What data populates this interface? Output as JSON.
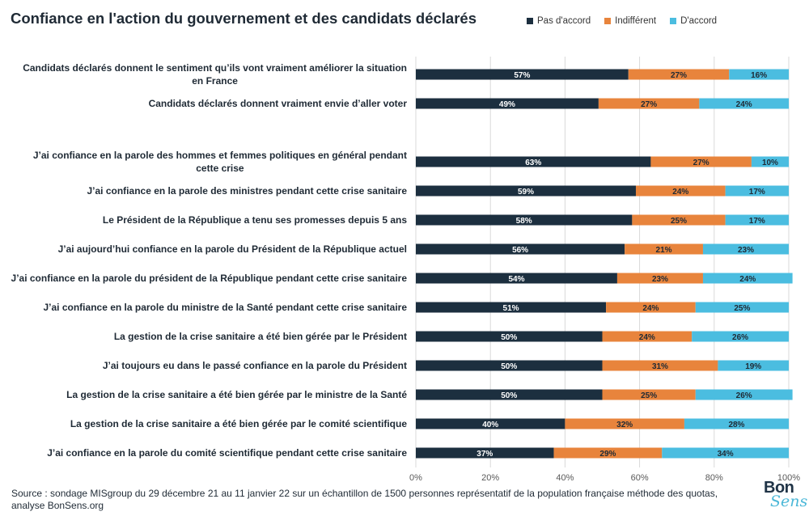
{
  "title": "Confiance en l'action du gouvernement et des candidats déclarés",
  "colors": {
    "pas_daccord": "#1c2f3f",
    "indifferent": "#e8843c",
    "daccord": "#4bbde0"
  },
  "source": "Source : sondage MISgroup du 29 décembre 21 au 11 janvier 22 sur un échantillon de 1500 personnes représentatif de la population française méthode des quotas, analyse BonSens.org",
  "logo": {
    "top": "Bon",
    "bottom": "Sens"
  },
  "chart_data": {
    "type": "bar",
    "orientation": "horizontal",
    "stacked": true,
    "percent": true,
    "title": "Confiance en l'action du gouvernement et des candidats déclarés",
    "xlim": [
      0,
      100
    ],
    "xticks": [
      "0%",
      "20%",
      "40%",
      "60%",
      "80%",
      "100%"
    ],
    "grid": true,
    "legend_position": "top-right",
    "categories": [
      "Candidats déclarés donnent le sentiment qu’ils vont vraiment améliorer la situation en France",
      "Candidats déclarés donnent vraiment envie d’aller voter",
      "",
      "J’ai confiance en la parole des hommes et femmes politiques en général pendant cette crise",
      "J’ai confiance en la parole des ministres pendant cette crise sanitaire",
      "Le Président de la République a tenu ses promesses depuis 5 ans",
      "J’ai aujourd’hui confiance en la parole du Président de la République actuel",
      "J’ai confiance en la parole du président de la République pendant cette crise sanitaire",
      "J’ai confiance en la parole du ministre de la Santé pendant cette crise sanitaire",
      "La gestion de la crise sanitaire a été bien gérée par le Président",
      "J’ai toujours eu dans le passé confiance en la parole du Président",
      "La gestion de la crise sanitaire a été bien gérée par le ministre de la Santé",
      "La gestion de la crise sanitaire a été bien gérée par le comité scientifique",
      "J’ai confiance en la parole du comité scientifique pendant cette crise sanitaire"
    ],
    "series": [
      {
        "name": "Pas d'accord",
        "color": "#1c2f3f",
        "values": [
          57,
          49,
          null,
          63,
          59,
          58,
          56,
          54,
          51,
          50,
          50,
          50,
          40,
          37
        ]
      },
      {
        "name": "Indifférent",
        "color": "#e8843c",
        "values": [
          27,
          27,
          null,
          27,
          24,
          25,
          21,
          23,
          24,
          24,
          31,
          25,
          32,
          29
        ]
      },
      {
        "name": "D'accord",
        "color": "#4bbde0",
        "values": [
          16,
          24,
          null,
          10,
          17,
          17,
          23,
          24,
          25,
          26,
          19,
          26,
          28,
          34
        ]
      }
    ]
  }
}
